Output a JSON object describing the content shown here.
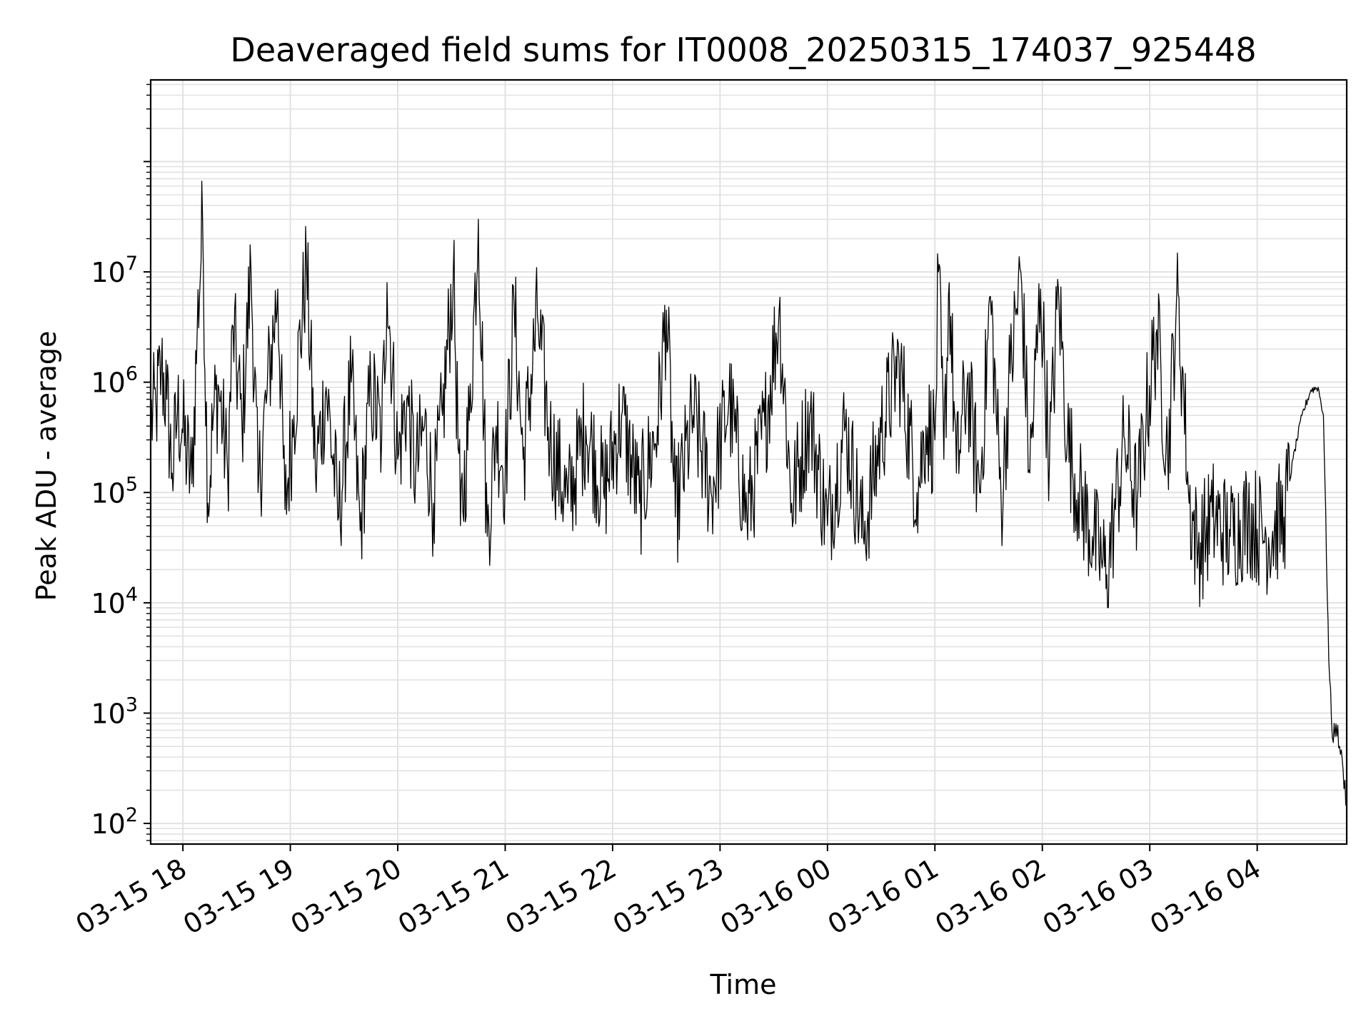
{
  "chart_data": {
    "type": "line",
    "title": "Deaveraged field sums for IT0008_20250315_174037_925448",
    "xlabel": "Time",
    "ylabel": "Peak ADU - average",
    "y_scale": "log",
    "ylim": [
      65,
      550000000
    ],
    "xlim": [
      "2025-03-15 17:42",
      "2025-03-16 04:50"
    ],
    "grid": true,
    "x_major_ticks": [
      {
        "time": "2025-03-15 18:00",
        "label": "03-15 18"
      },
      {
        "time": "2025-03-15 19:00",
        "label": "03-15 19"
      },
      {
        "time": "2025-03-15 20:00",
        "label": "03-15 20"
      },
      {
        "time": "2025-03-15 21:00",
        "label": "03-15 21"
      },
      {
        "time": "2025-03-15 22:00",
        "label": "03-15 22"
      },
      {
        "time": "2025-03-15 23:00",
        "label": "03-15 23"
      },
      {
        "time": "2025-03-16 00:00",
        "label": "03-16 00"
      },
      {
        "time": "2025-03-16 01:00",
        "label": "03-16 01"
      },
      {
        "time": "2025-03-16 02:00",
        "label": "03-16 02"
      },
      {
        "time": "2025-03-16 03:00",
        "label": "03-16 03"
      },
      {
        "time": "2025-03-16 04:00",
        "label": "03-16 04"
      }
    ],
    "y_major_ticks": [
      {
        "value": 100,
        "base": "10",
        "exp": "2"
      },
      {
        "value": 1000,
        "base": "10",
        "exp": "3"
      },
      {
        "value": 10000,
        "base": "10",
        "exp": "4"
      },
      {
        "value": 100000,
        "base": "10",
        "exp": "5"
      },
      {
        "value": 1000000,
        "base": "10",
        "exp": "6"
      },
      {
        "value": 10000000,
        "base": "10",
        "exp": "7"
      }
    ],
    "series": [
      {
        "color": "#000000",
        "points": [
          [
            "2025-03-15 17:42",
            450000
          ],
          [
            "2025-03-15 17:45",
            600000
          ],
          [
            "2025-03-15 17:48",
            1300000
          ],
          [
            "2025-03-15 17:51",
            700000
          ],
          [
            "2025-03-15 17:54",
            150000
          ],
          [
            "2025-03-15 17:57",
            550000
          ],
          [
            "2025-03-15 18:00",
            350000
          ],
          [
            "2025-03-15 18:05",
            120000
          ],
          [
            "2025-03-15 18:08",
            3000000
          ],
          [
            "2025-03-15 18:11",
            30000000
          ],
          [
            "2025-03-15 18:14",
            80000
          ],
          [
            "2025-03-15 18:17",
            500000
          ],
          [
            "2025-03-15 18:20",
            900000
          ],
          [
            "2025-03-15 18:25",
            150000
          ],
          [
            "2025-03-15 18:28",
            3200000
          ],
          [
            "2025-03-15 18:33",
            400000
          ],
          [
            "2025-03-15 18:38",
            11000000
          ],
          [
            "2025-03-15 18:42",
            100000
          ],
          [
            "2025-03-15 18:47",
            800000
          ],
          [
            "2025-03-15 18:53",
            7000000
          ],
          [
            "2025-03-15 18:57",
            70000
          ],
          [
            "2025-03-15 19:02",
            500000
          ],
          [
            "2025-03-15 19:09",
            12000000
          ],
          [
            "2025-03-15 19:14",
            150000
          ],
          [
            "2025-03-15 19:20",
            900000
          ],
          [
            "2025-03-15 19:27",
            60000
          ],
          [
            "2025-03-15 19:34",
            1000000
          ],
          [
            "2025-03-15 19:39",
            45000
          ],
          [
            "2025-03-15 19:45",
            900000
          ],
          [
            "2025-03-15 19:51",
            300000
          ],
          [
            "2025-03-15 19:54",
            8000000
          ],
          [
            "2025-03-15 20:00",
            200000
          ],
          [
            "2025-03-15 20:05",
            700000
          ],
          [
            "2025-03-15 20:10",
            150000
          ],
          [
            "2025-03-15 20:15",
            400000
          ],
          [
            "2025-03-15 20:20",
            80000
          ],
          [
            "2025-03-15 20:25",
            500000
          ],
          [
            "2025-03-15 20:31",
            10000000
          ],
          [
            "2025-03-15 20:35",
            50000
          ],
          [
            "2025-03-15 20:40",
            450000
          ],
          [
            "2025-03-15 20:45",
            30000000
          ],
          [
            "2025-03-15 20:50",
            40000
          ],
          [
            "2025-03-15 20:55",
            400000
          ],
          [
            "2025-03-15 21:00",
            150000
          ],
          [
            "2025-03-15 21:05",
            5000000
          ],
          [
            "2025-03-15 21:10",
            200000
          ],
          [
            "2025-03-15 21:18",
            4000000
          ],
          [
            "2025-03-15 21:25",
            300000
          ],
          [
            "2025-03-15 21:35",
            80000
          ],
          [
            "2025-03-15 21:45",
            400000
          ],
          [
            "2025-03-15 21:55",
            100000
          ],
          [
            "2025-03-15 22:05",
            500000
          ],
          [
            "2025-03-15 22:15",
            80000
          ],
          [
            "2025-03-15 22:25",
            400000
          ],
          [
            "2025-03-15 22:30",
            4500000
          ],
          [
            "2025-03-15 22:35",
            60000
          ],
          [
            "2025-03-15 22:45",
            500000
          ],
          [
            "2025-03-15 22:55",
            100000
          ],
          [
            "2025-03-15 23:05",
            700000
          ],
          [
            "2025-03-15 23:15",
            60000
          ],
          [
            "2025-03-15 23:25",
            400000
          ],
          [
            "2025-03-15 23:33",
            4500000
          ],
          [
            "2025-03-15 23:40",
            80000
          ],
          [
            "2025-03-15 23:50",
            500000
          ],
          [
            "2025-03-16 00:00",
            50000
          ],
          [
            "2025-03-16 00:10",
            400000
          ],
          [
            "2025-03-16 00:20",
            40000
          ],
          [
            "2025-03-16 00:30",
            350000
          ],
          [
            "2025-03-16 00:40",
            1500000
          ],
          [
            "2025-03-16 00:50",
            100000
          ],
          [
            "2025-03-16 00:55",
            400000
          ],
          [
            "2025-03-16 01:00",
            300000
          ],
          [
            "2025-03-16 01:02",
            10000000
          ],
          [
            "2025-03-16 01:05",
            200000
          ],
          [
            "2025-03-16 01:08",
            8000000
          ],
          [
            "2025-03-16 01:12",
            150000
          ],
          [
            "2025-03-16 01:18",
            1000000
          ],
          [
            "2025-03-16 01:25",
            100000
          ],
          [
            "2025-03-16 01:31",
            6000000
          ],
          [
            "2025-03-16 01:37",
            80000
          ],
          [
            "2025-03-16 01:42",
            1200000
          ],
          [
            "2025-03-16 01:48",
            10000000
          ],
          [
            "2025-03-16 01:53",
            150000
          ],
          [
            "2025-03-16 01:59",
            7000000
          ],
          [
            "2025-03-16 02:04",
            200000
          ],
          [
            "2025-03-16 02:09",
            7000000
          ],
          [
            "2025-03-16 02:14",
            300000
          ],
          [
            "2025-03-16 02:20",
            100000
          ],
          [
            "2025-03-16 02:28",
            40000
          ],
          [
            "2025-03-16 02:33",
            25000
          ],
          [
            "2025-03-16 02:36",
            18000
          ],
          [
            "2025-03-16 02:40",
            60000
          ],
          [
            "2025-03-16 02:46",
            300000
          ],
          [
            "2025-03-16 02:53",
            80000
          ],
          [
            "2025-03-16 02:58",
            500000
          ],
          [
            "2025-03-16 03:04",
            3000000
          ],
          [
            "2025-03-16 03:10",
            200000
          ],
          [
            "2025-03-16 03:15",
            6000000
          ],
          [
            "2025-03-16 03:19",
            800000
          ],
          [
            "2025-03-16 03:22",
            80000
          ],
          [
            "2025-03-16 03:27",
            30000
          ],
          [
            "2025-03-16 03:35",
            60000
          ],
          [
            "2025-03-16 03:45",
            40000
          ],
          [
            "2025-03-16 03:55",
            60000
          ],
          [
            "2025-03-16 04:05",
            40000
          ],
          [
            "2025-03-16 04:15",
            60000
          ],
          [
            "2025-03-16 04:20",
            200000
          ],
          [
            "2025-03-16 04:25",
            500000
          ],
          [
            "2025-03-16 04:30",
            850000
          ],
          [
            "2025-03-16 04:34",
            900000
          ],
          [
            "2025-03-16 04:37",
            500000
          ],
          [
            "2025-03-16 04:40",
            3000
          ],
          [
            "2025-03-16 04:42",
            600
          ],
          [
            "2025-03-16 04:44",
            800
          ],
          [
            "2025-03-16 04:46",
            500
          ],
          [
            "2025-03-16 04:48",
            300
          ],
          [
            "2025-03-16 04:50",
            150
          ]
        ]
      }
    ]
  }
}
